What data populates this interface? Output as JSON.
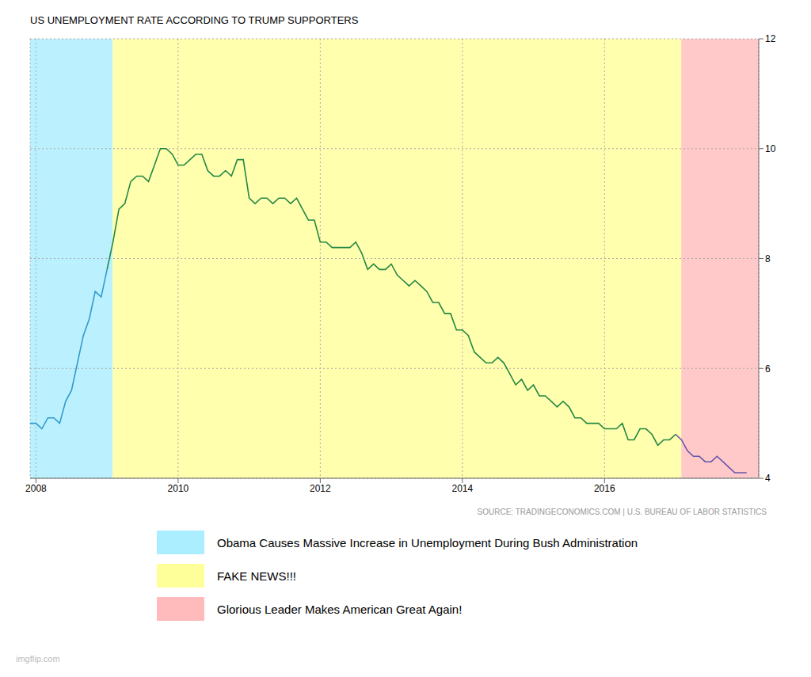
{
  "chart_data": {
    "type": "line",
    "title": "US UNEMPLOYMENT RATE ACCORDING TO TRUMP SUPPORTERS",
    "annotations": [
      "SOURCE: TRADINGECONOMICS.COM  |  U.S. BUREAU OF LABOR STATISTICS",
      "imgflip.com"
    ],
    "grid": true,
    "legend": "bottom",
    "xlim": [
      2007.917,
      2018.17
    ],
    "xticks": [
      2008,
      2010,
      2012,
      2014,
      2016
    ],
    "ylim": [
      4,
      12
    ],
    "yticks": [
      4,
      6,
      8,
      10,
      12
    ],
    "regions": [
      {
        "label": "Obama Causes Massive Increase in Unemployment During Bush Administration",
        "color": "#aaeeff",
        "line_color": "#3399cc",
        "start": 2007.917,
        "end": 2009.08
      },
      {
        "label": "FAKE NEWS!!!",
        "color": "#ffff99",
        "line_color": "#228844",
        "start": 2009.08,
        "end": 2017.08
      },
      {
        "label": "Glorious Leader Makes American Great Again!",
        "color": "#ffbbbb",
        "line_color": "#6655aa",
        "start": 2017.08,
        "end": 2018.17
      }
    ],
    "x": [
      2007.917,
      2008.0,
      2008.083,
      2008.167,
      2008.25,
      2008.333,
      2008.417,
      2008.5,
      2008.583,
      2008.667,
      2008.75,
      2008.833,
      2008.917,
      2009.0,
      2009.083,
      2009.167,
      2009.25,
      2009.333,
      2009.417,
      2009.5,
      2009.583,
      2009.667,
      2009.75,
      2009.833,
      2009.917,
      2010.0,
      2010.083,
      2010.167,
      2010.25,
      2010.333,
      2010.417,
      2010.5,
      2010.583,
      2010.667,
      2010.75,
      2010.833,
      2010.917,
      2011.0,
      2011.083,
      2011.167,
      2011.25,
      2011.333,
      2011.417,
      2011.5,
      2011.583,
      2011.667,
      2011.75,
      2011.833,
      2011.917,
      2012.0,
      2012.083,
      2012.167,
      2012.25,
      2012.333,
      2012.417,
      2012.5,
      2012.583,
      2012.667,
      2012.75,
      2012.833,
      2012.917,
      2013.0,
      2013.083,
      2013.167,
      2013.25,
      2013.333,
      2013.417,
      2013.5,
      2013.583,
      2013.667,
      2013.75,
      2013.833,
      2013.917,
      2014.0,
      2014.083,
      2014.167,
      2014.25,
      2014.333,
      2014.417,
      2014.5,
      2014.583,
      2014.667,
      2014.75,
      2014.833,
      2014.917,
      2015.0,
      2015.083,
      2015.167,
      2015.25,
      2015.333,
      2015.417,
      2015.5,
      2015.583,
      2015.667,
      2015.75,
      2015.833,
      2015.917,
      2016.0,
      2016.083,
      2016.167,
      2016.25,
      2016.333,
      2016.417,
      2016.5,
      2016.583,
      2016.667,
      2016.75,
      2016.833,
      2016.917,
      2017.0,
      2017.083,
      2017.167,
      2017.25,
      2017.333,
      2017.417,
      2017.5,
      2017.583,
      2017.667,
      2017.75,
      2017.833,
      2017.917,
      2018.0
    ],
    "values": [
      5.0,
      5.0,
      4.9,
      5.1,
      5.1,
      5.0,
      5.4,
      5.6,
      6.1,
      6.6,
      6.9,
      7.4,
      7.3,
      7.8,
      8.3,
      8.9,
      9.0,
      9.4,
      9.5,
      9.5,
      9.4,
      9.7,
      10.0,
      10.0,
      9.9,
      9.7,
      9.7,
      9.8,
      9.9,
      9.9,
      9.6,
      9.5,
      9.5,
      9.6,
      9.5,
      9.8,
      9.8,
      9.1,
      9.0,
      9.1,
      9.1,
      9.0,
      9.1,
      9.1,
      9.0,
      9.1,
      8.9,
      8.7,
      8.7,
      8.3,
      8.3,
      8.2,
      8.2,
      8.2,
      8.2,
      8.3,
      8.1,
      7.8,
      7.9,
      7.8,
      7.8,
      7.9,
      7.7,
      7.6,
      7.5,
      7.6,
      7.5,
      7.4,
      7.2,
      7.2,
      7.0,
      7.0,
      6.7,
      6.7,
      6.6,
      6.3,
      6.2,
      6.1,
      6.1,
      6.2,
      6.1,
      5.9,
      5.7,
      5.8,
      5.6,
      5.7,
      5.5,
      5.5,
      5.4,
      5.3,
      5.4,
      5.3,
      5.1,
      5.1,
      5.0,
      5.0,
      5.0,
      4.9,
      4.9,
      4.9,
      5.0,
      4.7,
      4.7,
      4.9,
      4.9,
      4.8,
      4.6,
      4.7,
      4.7,
      4.8,
      4.7,
      4.5,
      4.4,
      4.4,
      4.3,
      4.3,
      4.4,
      4.3,
      4.2,
      4.1,
      4.1,
      4.1
    ]
  }
}
